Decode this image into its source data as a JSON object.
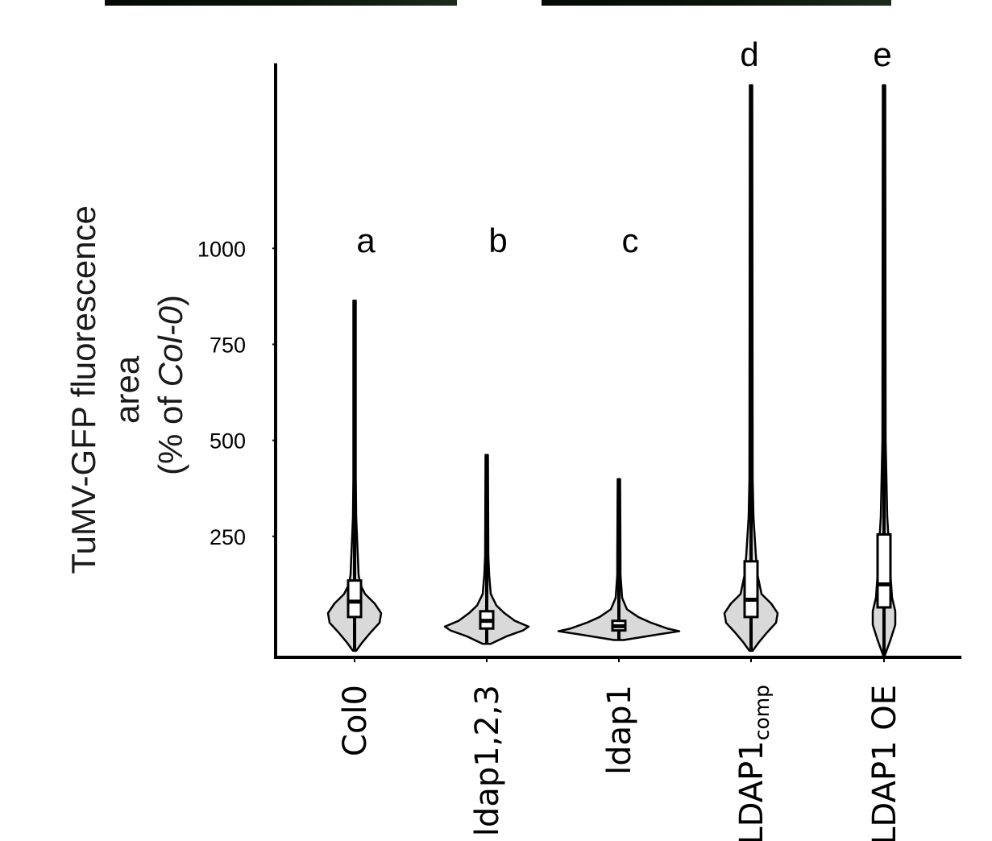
{
  "chart_data": {
    "type": "violin",
    "ylabel_lines": [
      "TuMV-GFP fluorescence",
      "area",
      "(% of ",
      "Col-0",
      ")"
    ],
    "yticks": [
      250,
      500,
      750,
      1000
    ],
    "ytick_labels": [
      "250",
      "500",
      "750",
      "1000"
    ],
    "ylim": [
      -65,
      1440
    ],
    "categories": [
      {
        "label": "Col0",
        "sub": ""
      },
      {
        "label": "ldap1,2,3",
        "sub": ""
      },
      {
        "label": "ldap1",
        "sub": ""
      },
      {
        "label": "LDAP1",
        "sub": "comp"
      },
      {
        "label": "LDAP1 OE",
        "sub": ""
      }
    ],
    "significance_letters": [
      "a",
      "b",
      "c",
      "d",
      "e"
    ],
    "series": [
      {
        "whisker": [
          -48,
          864
        ],
        "box": {
          "q1": 40,
          "median": 80,
          "q3": 135
        },
        "violin": [
          [
            -48,
            2
          ],
          [
            -25,
            10
          ],
          [
            0,
            20
          ],
          [
            25,
            31
          ],
          [
            50,
            33
          ],
          [
            75,
            25
          ],
          [
            100,
            13
          ],
          [
            125,
            7
          ],
          [
            150,
            5
          ],
          [
            200,
            4
          ],
          [
            300,
            2
          ],
          [
            400,
            1.5
          ],
          [
            864,
            1.5
          ]
        ]
      },
      {
        "whisker": [
          -30,
          462
        ],
        "box": {
          "q1": 10,
          "median": 30,
          "q3": 55
        },
        "violin": [
          [
            -30,
            5
          ],
          [
            -10,
            25
          ],
          [
            5,
            45
          ],
          [
            15,
            52
          ],
          [
            30,
            35
          ],
          [
            50,
            22
          ],
          [
            70,
            12
          ],
          [
            100,
            5
          ],
          [
            150,
            3
          ],
          [
            200,
            2
          ],
          [
            462,
            1.5
          ]
        ]
      },
      {
        "whisker": [
          -20,
          399
        ],
        "box": {
          "q1": 5,
          "median": 16,
          "q3": 30
        },
        "violin": [
          [
            -20,
            6
          ],
          [
            -5,
            50
          ],
          [
            3,
            75
          ],
          [
            10,
            60
          ],
          [
            25,
            40
          ],
          [
            40,
            24
          ],
          [
            60,
            10
          ],
          [
            90,
            4
          ],
          [
            150,
            2
          ],
          [
            200,
            2
          ],
          [
            399,
            1.5
          ]
        ]
      },
      {
        "whisker": [
          -48,
          1425
        ],
        "box": {
          "q1": 40,
          "median": 85,
          "q3": 185
        },
        "violin": [
          [
            -48,
            2
          ],
          [
            -25,
            10
          ],
          [
            0,
            20
          ],
          [
            25,
            31
          ],
          [
            50,
            33
          ],
          [
            75,
            25
          ],
          [
            100,
            13
          ],
          [
            150,
            8
          ],
          [
            200,
            6
          ],
          [
            300,
            3
          ],
          [
            400,
            2
          ],
          [
            1425,
            1.5
          ]
        ]
      },
      {
        "whisker": [
          -60,
          1425
        ],
        "box": {
          "q1": 65,
          "median": 125,
          "q3": 255
        },
        "violin": [
          [
            -60,
            1
          ],
          [
            -20,
            8
          ],
          [
            20,
            14
          ],
          [
            55,
            14
          ],
          [
            90,
            10
          ],
          [
            150,
            8
          ],
          [
            200,
            7
          ],
          [
            300,
            4
          ],
          [
            500,
            2
          ],
          [
            1425,
            1.5
          ]
        ]
      }
    ]
  }
}
